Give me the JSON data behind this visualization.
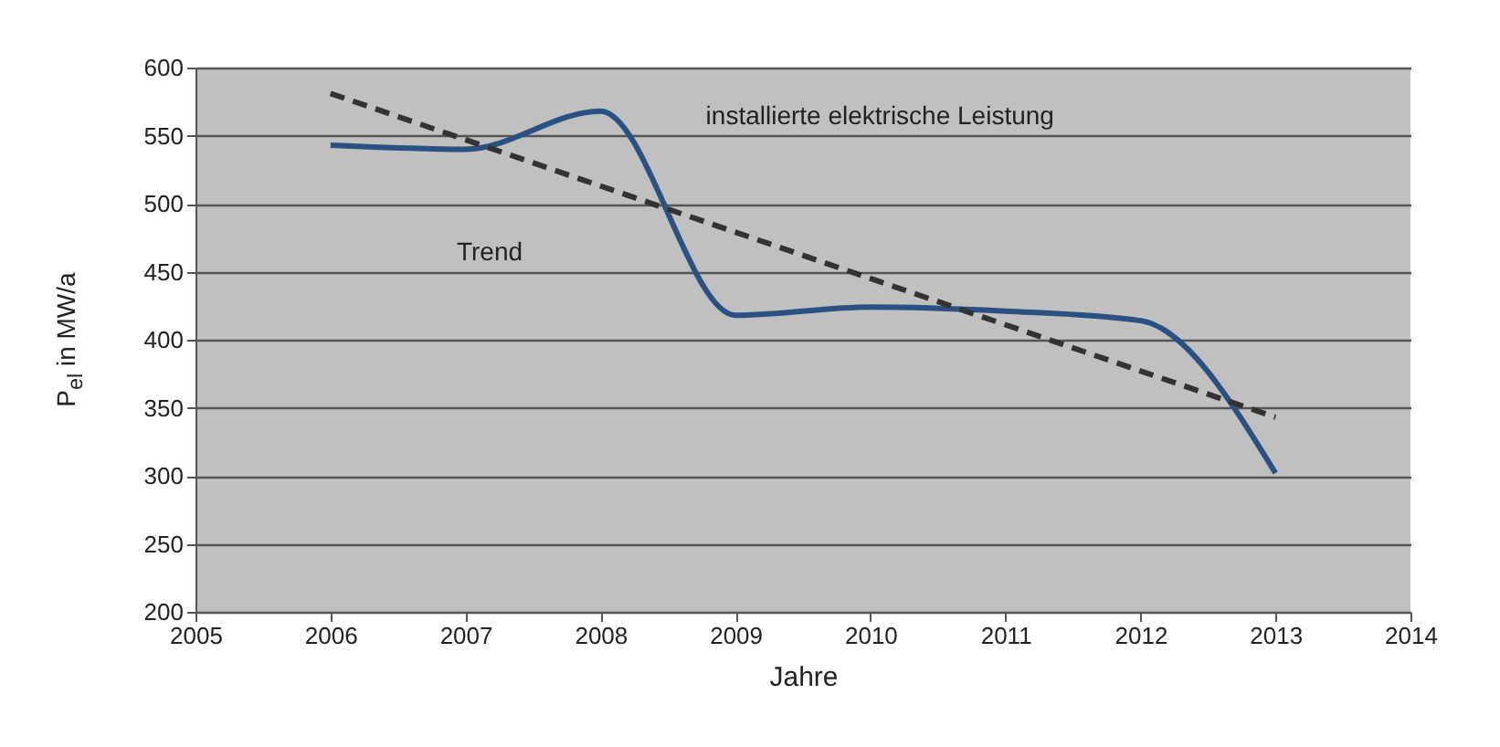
{
  "chart_data": {
    "type": "line",
    "xlabel": "Jahre",
    "ylabel": "P$_{el}$ in MW/a",
    "x": [
      2006,
      2007,
      2008,
      2009,
      2010,
      2011,
      2012,
      2013
    ],
    "series": [
      {
        "name": "installierte elektrische Leistung",
        "color": "#2b5082",
        "values": [
          543,
          540,
          568,
          418,
          424,
          421,
          414,
          302
        ]
      },
      {
        "name": "Trend",
        "type": "line",
        "x": [
          2006,
          2013
        ],
        "color": "#333333",
        "line_style": "dashed",
        "values": [
          581,
          343
        ]
      }
    ],
    "xlim": [
      2005,
      2014
    ],
    "xticks": [
      2005,
      2006,
      2007,
      2008,
      2009,
      2010,
      2011,
      2012,
      2013,
      2014
    ],
    "ylim": [
      200,
      600
    ],
    "yticks": [
      200,
      250,
      300,
      350,
      400,
      450,
      500,
      550,
      600
    ],
    "grid": "y",
    "marker": "none",
    "line_style": "solid"
  }
}
